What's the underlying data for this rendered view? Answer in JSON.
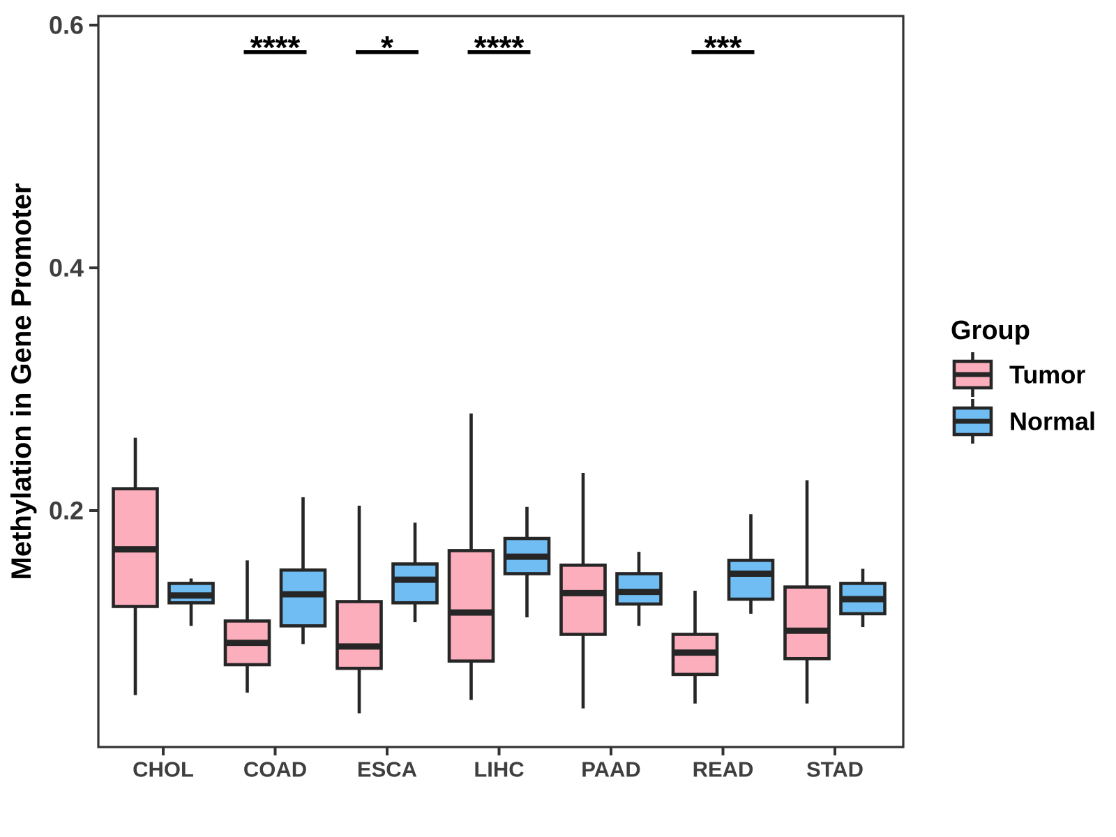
{
  "chart_data": {
    "type": "box",
    "title": "",
    "xlabel": "",
    "ylabel": "Methylation in Gene Promoter",
    "categories": [
      "CHOL",
      "COAD",
      "ESCA",
      "LIHC",
      "PAAD",
      "READ",
      "STAD"
    ],
    "y_ticks": [
      "0.2",
      "0.4",
      "0.6"
    ],
    "y_tick_values": [
      0.2,
      0.4,
      0.6
    ],
    "ylim": [
      0.005,
      0.6075
    ],
    "grid": false,
    "legend": {
      "title": "Group",
      "position": "right",
      "entries": [
        {
          "label": "Tumor",
          "color": "#FCAEBD"
        },
        {
          "label": "Normal",
          "color": "#6FBDF2"
        }
      ]
    },
    "significance": [
      "",
      "****",
      "*",
      "****",
      "",
      "***",
      ""
    ],
    "series": [
      {
        "name": "Tumor",
        "color": "#FCAEBD",
        "boxes": [
          {
            "category": "CHOL",
            "whisker_low": 0.048,
            "q1": 0.121,
            "median": 0.168,
            "q3": 0.218,
            "whisker_high": 0.26
          },
          {
            "category": "COAD",
            "whisker_low": 0.05,
            "q1": 0.073,
            "median": 0.091,
            "q3": 0.109,
            "whisker_high": 0.159
          },
          {
            "category": "ESCA",
            "whisker_low": 0.033,
            "q1": 0.07,
            "median": 0.088,
            "q3": 0.125,
            "whisker_high": 0.204
          },
          {
            "category": "LIHC",
            "whisker_low": 0.044,
            "q1": 0.076,
            "median": 0.116,
            "q3": 0.167,
            "whisker_high": 0.28
          },
          {
            "category": "PAAD",
            "whisker_low": 0.037,
            "q1": 0.098,
            "median": 0.132,
            "q3": 0.155,
            "whisker_high": 0.231
          },
          {
            "category": "READ",
            "whisker_low": 0.041,
            "q1": 0.065,
            "median": 0.083,
            "q3": 0.098,
            "whisker_high": 0.134
          },
          {
            "category": "STAD",
            "whisker_low": 0.041,
            "q1": 0.078,
            "median": 0.101,
            "q3": 0.137,
            "whisker_high": 0.225
          }
        ]
      },
      {
        "name": "Normal",
        "color": "#6FBDF2",
        "boxes": [
          {
            "category": "CHOL",
            "whisker_low": 0.105,
            "q1": 0.124,
            "median": 0.13,
            "q3": 0.14,
            "whisker_high": 0.144
          },
          {
            "category": "COAD",
            "whisker_low": 0.09,
            "q1": 0.105,
            "median": 0.131,
            "q3": 0.151,
            "whisker_high": 0.211
          },
          {
            "category": "ESCA",
            "whisker_low": 0.108,
            "q1": 0.124,
            "median": 0.143,
            "q3": 0.156,
            "whisker_high": 0.19
          },
          {
            "category": "LIHC",
            "whisker_low": 0.112,
            "q1": 0.148,
            "median": 0.162,
            "q3": 0.177,
            "whisker_high": 0.203
          },
          {
            "category": "PAAD",
            "whisker_low": 0.105,
            "q1": 0.123,
            "median": 0.133,
            "q3": 0.148,
            "whisker_high": 0.166
          },
          {
            "category": "READ",
            "whisker_low": 0.115,
            "q1": 0.127,
            "median": 0.148,
            "q3": 0.159,
            "whisker_high": 0.197
          },
          {
            "category": "STAD",
            "whisker_low": 0.104,
            "q1": 0.115,
            "median": 0.127,
            "q3": 0.14,
            "whisker_high": 0.152
          }
        ]
      }
    ]
  },
  "colors": {
    "box_stroke": "#262626",
    "median_stroke": "#262626",
    "panel_border": "#333333",
    "axis_text": "#3F3F3F",
    "axis_title": "#000000",
    "significance": "#000000",
    "legend_text": "#000000",
    "background": "#FFFFFF"
  }
}
